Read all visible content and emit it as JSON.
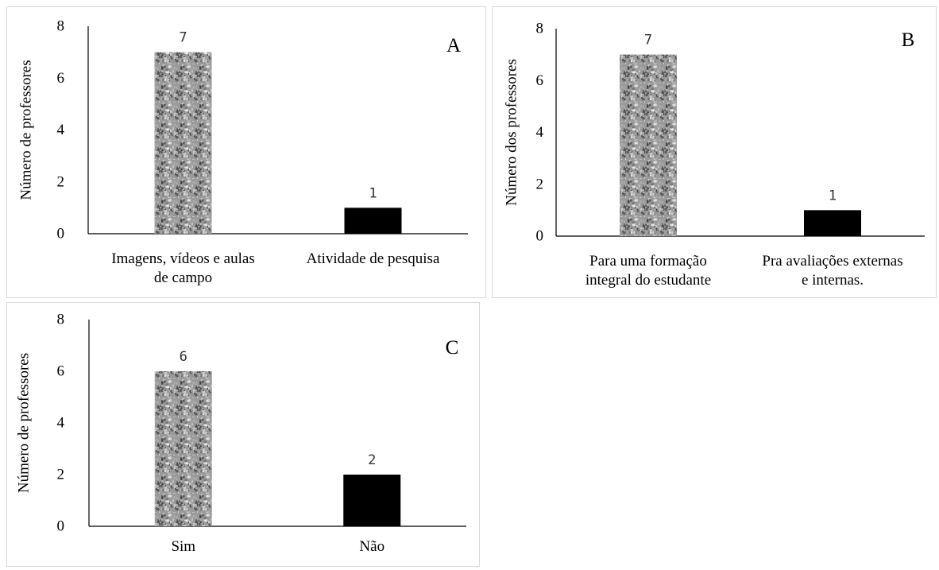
{
  "colors": {
    "bar_textured": "#9a9a9a",
    "bar_solid": "#000000",
    "axis": "#000000",
    "panel_border": "#d9d9d9"
  },
  "chart_data": [
    {
      "type": "bar",
      "panel_label": "A",
      "ylabel": "Número de professores",
      "ylim": [
        0,
        8
      ],
      "yticks": [
        "0",
        "2",
        "4",
        "6",
        "8"
      ],
      "categories": [
        "Imagens, vídeos e aulas de campo",
        "Atividade de pesquisa"
      ],
      "category_lines": [
        [
          "Imagens, vídeos e aulas",
          "de campo"
        ],
        [
          "Atividade de pesquisa"
        ]
      ],
      "values": [
        7,
        1
      ],
      "data_labels": [
        "7",
        "1"
      ],
      "bar_styles": [
        "textured",
        "solid"
      ],
      "grid": false,
      "legend": "none"
    },
    {
      "type": "bar",
      "panel_label": "B",
      "ylabel": "Número dos professores",
      "ylim": [
        0,
        8
      ],
      "yticks": [
        "0",
        "2",
        "4",
        "6",
        "8"
      ],
      "categories": [
        "Para uma formação integral do estudante",
        "Pra avaliações externas e internas."
      ],
      "category_lines": [
        [
          "Para uma formação",
          "integral do estudante"
        ],
        [
          "Pra avaliações externas",
          "e internas."
        ]
      ],
      "values": [
        7,
        1
      ],
      "data_labels": [
        "7",
        "1"
      ],
      "bar_styles": [
        "textured",
        "solid"
      ],
      "grid": false,
      "legend": "none"
    },
    {
      "type": "bar",
      "panel_label": "C",
      "ylabel": "Número de professores",
      "ylim": [
        0,
        8
      ],
      "yticks": [
        "0",
        "2",
        "4",
        "6",
        "8"
      ],
      "categories": [
        "Sim",
        "Não"
      ],
      "category_lines": [
        [
          "Sim"
        ],
        [
          "Não"
        ]
      ],
      "values": [
        6,
        2
      ],
      "data_labels": [
        "6",
        "2"
      ],
      "bar_styles": [
        "textured",
        "solid"
      ],
      "grid": false,
      "legend": "none"
    }
  ]
}
